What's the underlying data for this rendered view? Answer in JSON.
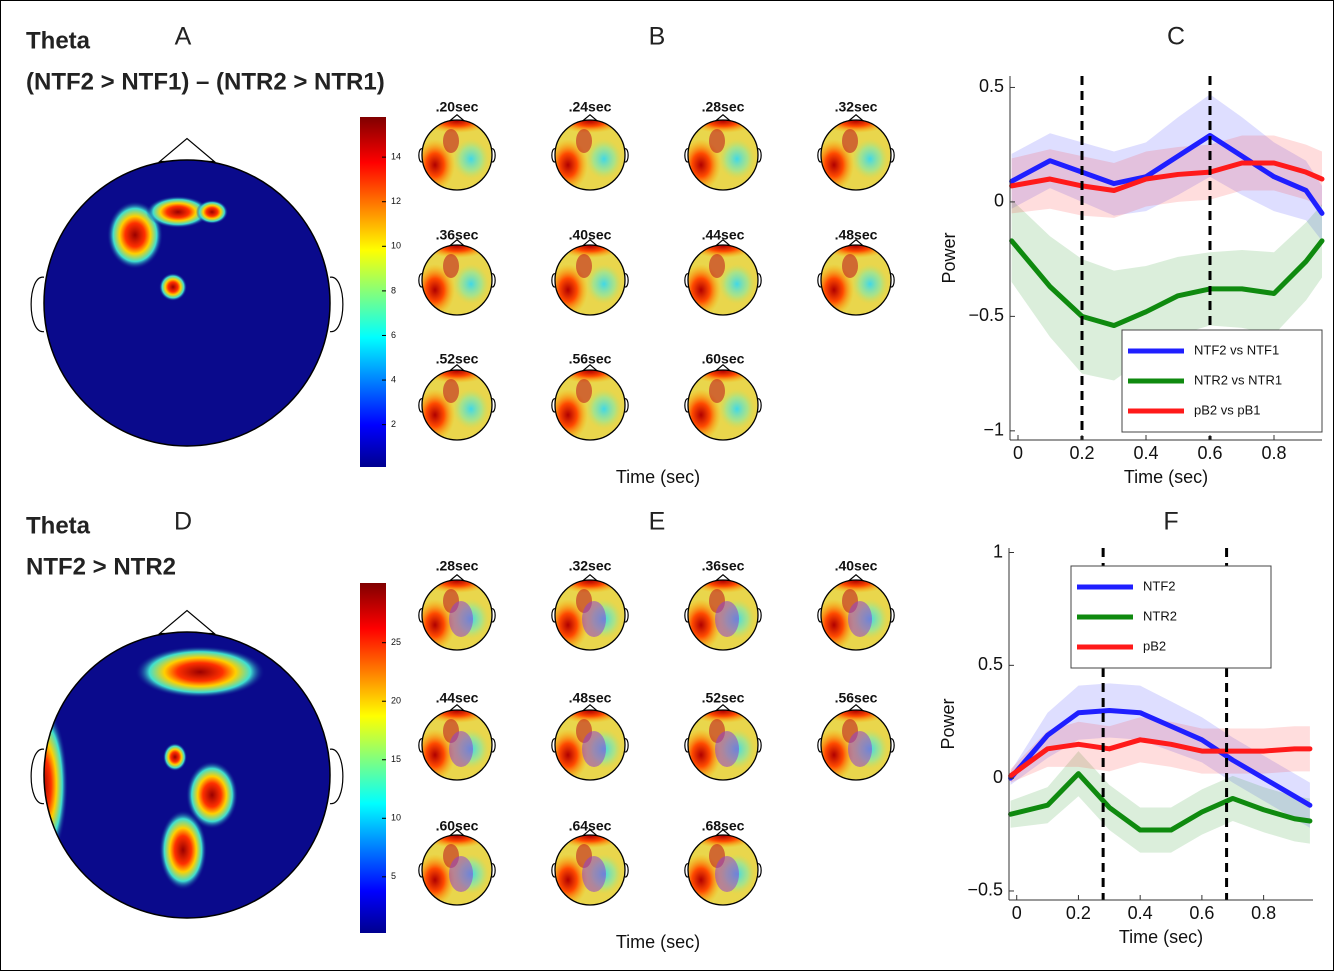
{
  "panels": [
    {
      "label": "A",
      "band": "Theta",
      "contrast": "(NTF2 > NTF1) – (NTR2 > NTR1)",
      "maps_label": "B",
      "colorbar": {
        "lim": [
          0.1,
          15.8
        ],
        "ticks": [
          2,
          4,
          6,
          8,
          10,
          12,
          14
        ]
      },
      "times": [
        ".20sec",
        ".24sec",
        ".28sec",
        ".32sec",
        ".36sec",
        ".40sec",
        ".44sec",
        ".48sec",
        ".52sec",
        ".56sec",
        ".60sec"
      ],
      "time_axis_label": "Time (sec)"
    },
    {
      "label": "D",
      "band": "Theta",
      "contrast": "NTF2 > NTR2",
      "maps_label": "E",
      "colorbar": {
        "lim": [
          0.2,
          30.1
        ],
        "ticks": [
          5,
          10,
          15,
          20,
          25
        ]
      },
      "times": [
        ".28sec",
        ".32sec",
        ".36sec",
        ".40sec",
        ".44sec",
        ".48sec",
        ".52sec",
        ".56sec",
        ".60sec",
        ".64sec",
        ".68sec"
      ],
      "time_axis_label": "Time (sec)"
    }
  ],
  "chart_data": [
    {
      "type": "line",
      "title": "C",
      "xlabel": "Time (sec)",
      "ylabel": "Power",
      "x": [
        -0.02,
        0.1,
        0.2,
        0.3,
        0.4,
        0.5,
        0.6,
        0.7,
        0.8,
        0.9,
        0.95
      ],
      "series": [
        {
          "name": "NTF2 vs NTF1",
          "color": "#1f1fff",
          "values": [
            0.09,
            0.18,
            0.13,
            0.08,
            0.11,
            0.2,
            0.29,
            0.2,
            0.11,
            0.05,
            -0.05
          ],
          "error": [
            0.12,
            0.12,
            0.13,
            0.14,
            0.15,
            0.17,
            0.18,
            0.17,
            0.15,
            0.13,
            0.12
          ]
        },
        {
          "name": "NTR2 vs NTR1",
          "color": "#0f8a0f",
          "values": [
            -0.17,
            -0.37,
            -0.5,
            -0.54,
            -0.48,
            -0.41,
            -0.38,
            -0.38,
            -0.4,
            -0.26,
            -0.17
          ],
          "error": [
            0.18,
            0.22,
            0.25,
            0.24,
            0.2,
            0.17,
            0.16,
            0.17,
            0.18,
            0.17,
            0.16
          ]
        },
        {
          "name": "pB2 vs pB1",
          "color": "#ff1a1a",
          "values": [
            0.07,
            0.1,
            0.07,
            0.05,
            0.1,
            0.12,
            0.13,
            0.17,
            0.17,
            0.13,
            0.1
          ],
          "error": [
            0.12,
            0.13,
            0.13,
            0.12,
            0.12,
            0.12,
            0.12,
            0.12,
            0.12,
            0.12,
            0.12
          ]
        }
      ],
      "vlines": [
        0.2,
        0.6
      ],
      "xlim": [
        -0.025,
        0.95
      ],
      "ylim": [
        -1.04,
        0.55
      ],
      "xticks": [
        0,
        0.2,
        0.4,
        0.6,
        0.8
      ],
      "yticks": [
        {
          "value": -1,
          "label": "−1"
        },
        {
          "value": -0.5,
          "label": "−0.5"
        },
        0,
        0.5
      ],
      "legend": "lower right"
    },
    {
      "type": "line",
      "title": "F",
      "xlabel": "Time (sec)",
      "ylabel": "Power",
      "x": [
        -0.02,
        0.1,
        0.2,
        0.3,
        0.4,
        0.5,
        0.6,
        0.7,
        0.8,
        0.9,
        0.95
      ],
      "series": [
        {
          "name": "NTF2",
          "color": "#1f1fff",
          "values": [
            0,
            0.19,
            0.29,
            0.3,
            0.29,
            0.23,
            0.17,
            0.08,
            0,
            -0.08,
            -0.12
          ],
          "error": [
            0.03,
            0.1,
            0.12,
            0.12,
            0.12,
            0.11,
            0.1,
            0.1,
            0.1,
            0.1,
            0.1
          ]
        },
        {
          "name": "NTR2",
          "color": "#0f8a0f",
          "values": [
            -0.16,
            -0.12,
            0.02,
            -0.13,
            -0.23,
            -0.23,
            -0.15,
            -0.09,
            -0.14,
            -0.18,
            -0.19
          ],
          "error": [
            0.06,
            0.08,
            0.1,
            0.1,
            0.1,
            0.1,
            0.1,
            0.1,
            0.1,
            0.1,
            0.1
          ]
        },
        {
          "name": "pB2",
          "color": "#ff1a1a",
          "values": [
            0.01,
            0.13,
            0.15,
            0.13,
            0.17,
            0.15,
            0.12,
            0.12,
            0.12,
            0.13,
            0.13
          ],
          "error": [
            0.03,
            0.08,
            0.1,
            0.1,
            0.1,
            0.1,
            0.1,
            0.1,
            0.1,
            0.1,
            0.1
          ]
        }
      ],
      "vlines": [
        0.28,
        0.68
      ],
      "xlim": [
        -0.025,
        0.96
      ],
      "ylim": [
        -0.54,
        1.02
      ],
      "xticks": [
        0,
        0.2,
        0.4,
        0.6,
        0.8
      ],
      "yticks": [
        {
          "value": -0.5,
          "label": "−0.5"
        },
        0,
        0.5,
        1
      ],
      "legend": "upper center"
    }
  ]
}
